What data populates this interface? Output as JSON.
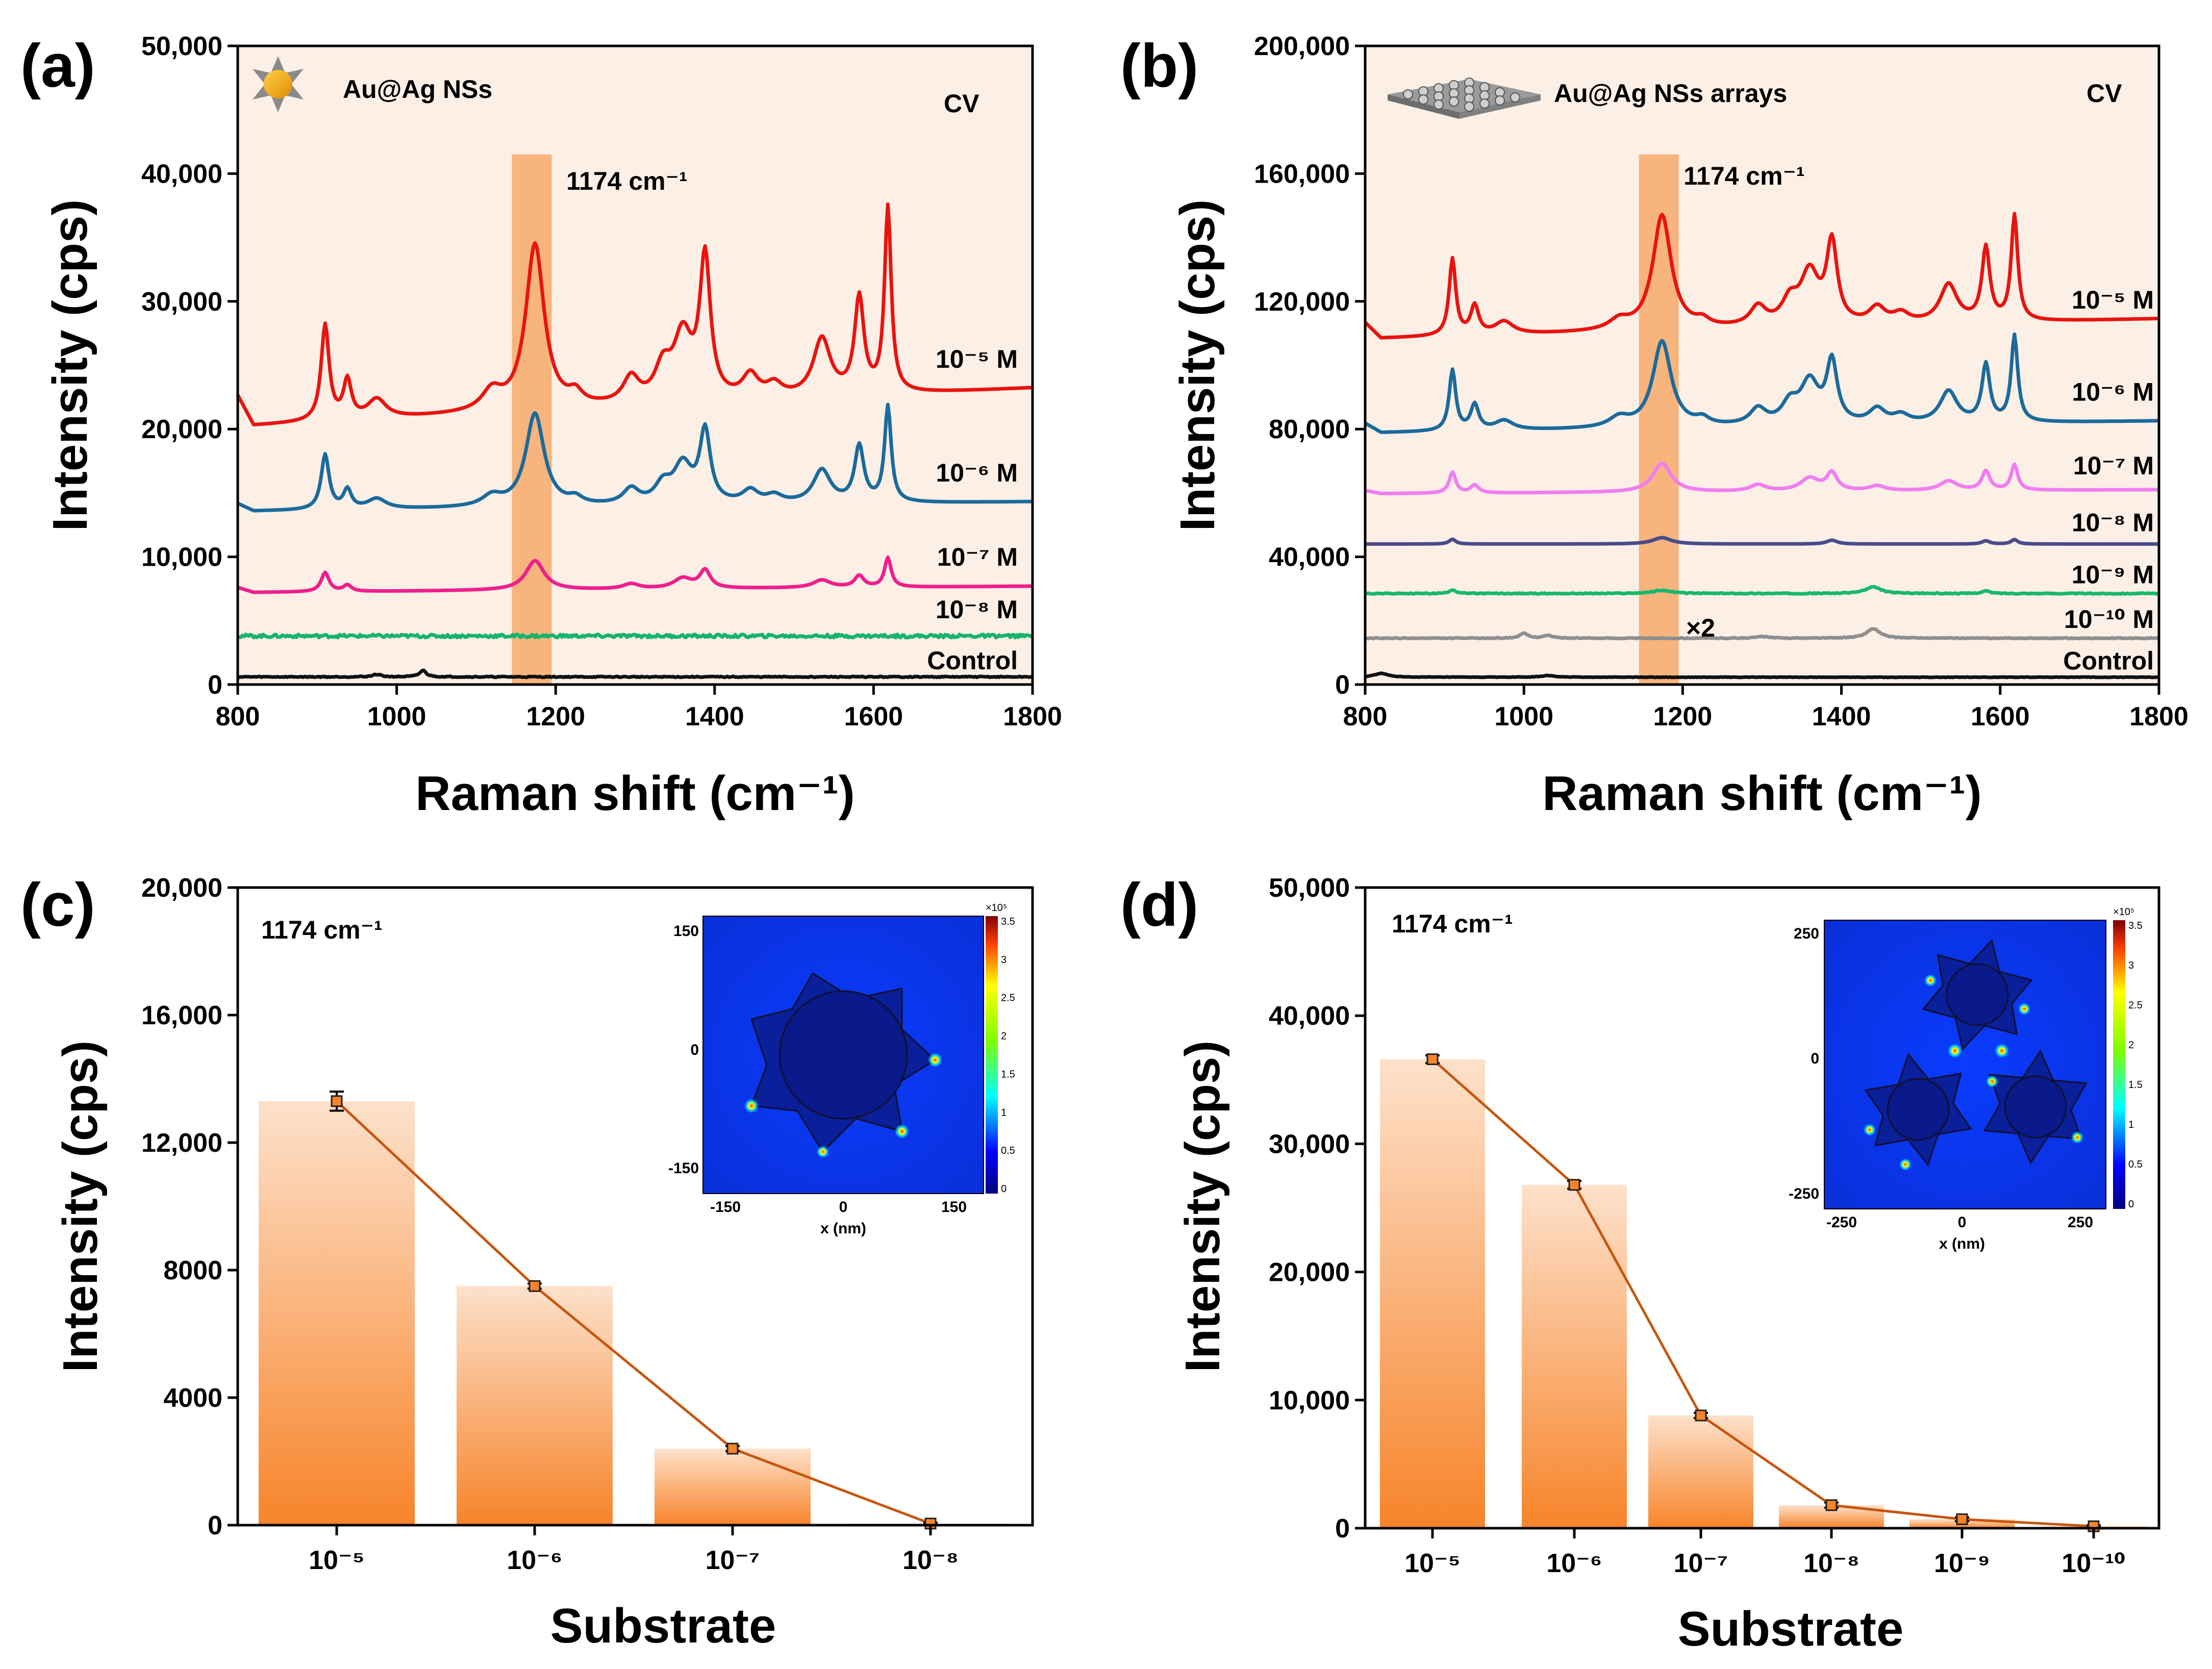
{
  "panels": {
    "a": {
      "letter": "(a)",
      "legend_label": "Au@Ag NSs",
      "cv_label": "CV",
      "peak_label": "1174 cm⁻¹",
      "xlabel": "Raman shift (cm⁻¹)",
      "ylabel": "Intensity (cps)"
    },
    "b": {
      "letter": "(b)",
      "legend_label": "Au@Ag NSs arrays",
      "cv_label": "CV",
      "peak_label": "1174 cm⁻¹",
      "xlabel": "Raman shift (cm⁻¹)",
      "ylabel": "Intensity (cps)",
      "multiplier_label": "×2"
    },
    "c": {
      "letter": "(c)",
      "peak_label": "1174 cm⁻¹",
      "xlabel": "Substrate",
      "ylabel": "Intensity (cps)",
      "inset": {
        "xlabel": "x (nm)",
        "xticks": [
          "-150",
          "0",
          "150"
        ],
        "yticks": [
          "150",
          "0",
          "-150"
        ],
        "colorbar_exp": "×10⁵",
        "colorbar_ticks": [
          "3.5",
          "3",
          "2.5",
          "2",
          "1.5",
          "1",
          "0.5",
          "0"
        ]
      }
    },
    "d": {
      "letter": "(d)",
      "peak_label": "1174 cm⁻¹",
      "xlabel": "Substrate",
      "ylabel": "Intensity (cps)",
      "inset": {
        "xlabel": "x (nm)",
        "xticks": [
          "-250",
          "0",
          "250"
        ],
        "yticks": [
          "250",
          "0",
          "-250"
        ],
        "colorbar_exp": "×10⁵",
        "colorbar_ticks": [
          "3.5",
          "3",
          "2.5",
          "2",
          "1.5",
          "1",
          "0.5",
          "0"
        ]
      }
    }
  },
  "colors": {
    "red": "#e8140f",
    "blue": "#1b6a9c",
    "magenta": "#ee1f8c",
    "green": "#16b46b",
    "black": "#111111",
    "pink": "#f07ef0",
    "navy": "#4a4c8a",
    "green2": "#19b86a",
    "gray": "#8f8f8f",
    "peak_band": "#f6a96a",
    "plot_bg": "#fcefe6",
    "bar_top": "#fde1cb",
    "bar_bottom": "#f7842a",
    "trend_line": "#c6560e"
  },
  "chart_data": [
    {
      "id": "a",
      "type": "line",
      "title": "",
      "xlabel": "Raman shift (cm⁻¹)",
      "ylabel": "Intensity (cps)",
      "xlim": [
        800,
        1800
      ],
      "ylim": [
        0,
        50000
      ],
      "xticks": [
        "800",
        "1000",
        "1200",
        "1400",
        "1600",
        "1800"
      ],
      "yticks": [
        "0",
        "10,000",
        "20,000",
        "30,000",
        "40,000",
        "50,000"
      ],
      "highlight_band": [
        1145,
        1195
      ],
      "series": [
        {
          "name": "10⁻⁵ M",
          "color_key": "red",
          "baseline": 22000,
          "drift": 1200,
          "noise": 0,
          "peaks": [
            [
              910,
              7500,
              6
            ],
            [
              938,
              3000,
              6
            ],
            [
              975,
              1500,
              14
            ],
            [
              1120,
              1500,
              15
            ],
            [
              1174,
              13000,
              14
            ],
            [
              1225,
              900,
              10
            ],
            [
              1295,
              2000,
              12
            ],
            [
              1335,
              2500,
              12
            ],
            [
              1360,
              5000,
              14
            ],
            [
              1388,
              11000,
              8
            ],
            [
              1445,
              1800,
              12
            ],
            [
              1475,
              1000,
              12
            ],
            [
              1535,
              4500,
              13
            ],
            [
              1582,
              7500,
              7
            ],
            [
              1618,
              14500,
              5
            ]
          ]
        },
        {
          "name": "10⁻⁶ M",
          "color_key": "blue",
          "baseline": 14000,
          "drift": 300,
          "noise": 0,
          "peaks": [
            [
              910,
              4300,
              6
            ],
            [
              938,
              1500,
              6
            ],
            [
              975,
              800,
              14
            ],
            [
              1120,
              800,
              15
            ],
            [
              1174,
              7300,
              14
            ],
            [
              1225,
              500,
              10
            ],
            [
              1295,
              1200,
              12
            ],
            [
              1335,
              1400,
              12
            ],
            [
              1360,
              3000,
              14
            ],
            [
              1388,
              5600,
              8
            ],
            [
              1445,
              1000,
              12
            ],
            [
              1475,
              600,
              12
            ],
            [
              1535,
              2600,
              13
            ],
            [
              1582,
              4400,
              7
            ],
            [
              1618,
              7500,
              5
            ]
          ]
        },
        {
          "name": "10⁻⁷ M",
          "color_key": "magenta",
          "baseline": 7500,
          "drift": 200,
          "noise": 0,
          "peaks": [
            [
              910,
              1500,
              6
            ],
            [
              938,
              500,
              6
            ],
            [
              1174,
              2300,
              14
            ],
            [
              1295,
              400,
              12
            ],
            [
              1360,
              800,
              14
            ],
            [
              1388,
              1400,
              8
            ],
            [
              1535,
              600,
              13
            ],
            [
              1582,
              900,
              7
            ],
            [
              1618,
              2300,
              5
            ]
          ]
        },
        {
          "name": "10⁻⁸ M",
          "color_key": "green",
          "baseline": 3800,
          "drift": 0,
          "noise": 250,
          "peaks": []
        },
        {
          "name": "Control",
          "color_key": "black",
          "baseline": 600,
          "drift": 0,
          "noise": 80,
          "peaks": [
            [
              1033,
              500,
              5
            ],
            [
              975,
              200,
              6
            ]
          ]
        }
      ]
    },
    {
      "id": "b",
      "type": "line",
      "title": "",
      "xlabel": "Raman shift (cm⁻¹)",
      "ylabel": "Intensity (cps)",
      "xlim": [
        800,
        1800
      ],
      "ylim": [
        0,
        200000
      ],
      "xticks": [
        "800",
        "1000",
        "1200",
        "1400",
        "1600",
        "1800"
      ],
      "yticks": [
        "0",
        "40,000",
        "80,000",
        "120,000",
        "160,000",
        "200,000"
      ],
      "highlight_band": [
        1145,
        1195
      ],
      "series": [
        {
          "name": "10⁻⁵ M",
          "color_key": "red",
          "baseline": 112000,
          "drift": 2500,
          "noise": 0,
          "peaks": [
            [
              910,
              24000,
              5
            ],
            [
              938,
              9000,
              6
            ],
            [
              975,
              4000,
              14
            ],
            [
              1120,
              3000,
              15
            ],
            [
              1174,
              36000,
              14
            ],
            [
              1225,
              2000,
              10
            ],
            [
              1295,
              6000,
              12
            ],
            [
              1335,
              7000,
              12
            ],
            [
              1360,
              16000,
              14
            ],
            [
              1388,
              25000,
              8
            ],
            [
              1445,
              5000,
              12
            ],
            [
              1475,
              3000,
              12
            ],
            [
              1535,
              12000,
              13
            ],
            [
              1582,
              23000,
              6
            ],
            [
              1618,
              33000,
              5
            ]
          ]
        },
        {
          "name": "10⁻⁶ M",
          "color_key": "blue",
          "baseline": 81000,
          "drift": 1500,
          "noise": 0,
          "peaks": [
            [
              910,
              19000,
              5
            ],
            [
              938,
              8000,
              6
            ],
            [
              975,
              3000,
              14
            ],
            [
              1120,
              3000,
              15
            ],
            [
              1174,
              27000,
              14
            ],
            [
              1225,
              2000,
              10
            ],
            [
              1295,
              5000,
              12
            ],
            [
              1335,
              6000,
              12
            ],
            [
              1360,
              13000,
              14
            ],
            [
              1388,
              19000,
              8
            ],
            [
              1445,
              4500,
              12
            ],
            [
              1475,
              2500,
              12
            ],
            [
              1535,
              10000,
              13
            ],
            [
              1582,
              18000,
              6
            ],
            [
              1618,
              27000,
              5
            ]
          ]
        },
        {
          "name": "10⁻⁷ M",
          "color_key": "pink",
          "baseline": 60500,
          "drift": 500,
          "noise": 0,
          "peaks": [
            [
              910,
              6500,
              5
            ],
            [
              938,
              2500,
              6
            ],
            [
              1174,
              9000,
              14
            ],
            [
              1295,
              2000,
              12
            ],
            [
              1360,
              4000,
              14
            ],
            [
              1388,
              5500,
              8
            ],
            [
              1445,
              1500,
              12
            ],
            [
              1535,
              3000,
              13
            ],
            [
              1582,
              6000,
              6
            ],
            [
              1618,
              8000,
              5
            ]
          ]
        },
        {
          "name": "10⁻⁸ M",
          "color_key": "navy",
          "baseline": 44000,
          "drift": 0,
          "noise": 0,
          "peaks": [
            [
              910,
              1500,
              5
            ],
            [
              1174,
              2000,
              14
            ],
            [
              1388,
              1200,
              8
            ],
            [
              1582,
              1000,
              6
            ],
            [
              1618,
              1400,
              5
            ]
          ]
        },
        {
          "name": "10⁻⁹ M",
          "color_key": "green2",
          "baseline": 28500,
          "drift": 0,
          "noise": 300,
          "peaks": [
            [
              910,
              1200,
              5
            ],
            [
              1174,
              1000,
              14
            ],
            [
              1440,
              2000,
              12
            ],
            [
              1582,
              800,
              6
            ]
          ]
        },
        {
          "name": "10⁻¹⁰ M",
          "color_key": "gray",
          "baseline": 14500,
          "drift": 0,
          "noise": 250,
          "peaks": [
            [
              1000,
              1500,
              6
            ],
            [
              1030,
              800,
              8
            ],
            [
              1300,
              500,
              10
            ],
            [
              1440,
              3000,
              10
            ]
          ]
        },
        {
          "name": "Control",
          "color_key": "black",
          "baseline": 2300,
          "drift": 0,
          "noise": 150,
          "peaks": [
            [
              820,
              1200,
              10
            ],
            [
              1030,
              500,
              10
            ]
          ]
        }
      ]
    },
    {
      "id": "c",
      "type": "bar",
      "title": "",
      "xlabel": "Substrate",
      "ylabel": "Intensity (cps)",
      "categories": [
        "10⁻⁵",
        "10⁻⁶",
        "10⁻⁷",
        "10⁻⁸"
      ],
      "values": [
        13300,
        7500,
        2400,
        50
      ],
      "errors": [
        300,
        80,
        80,
        30
      ],
      "ylim": [
        0,
        20000
      ],
      "yticks": [
        "0",
        "4000",
        "8000",
        "12,000",
        "16,000",
        "20,000"
      ]
    },
    {
      "id": "d",
      "type": "bar",
      "title": "",
      "xlabel": "Substrate",
      "ylabel": "Intensity (cps)",
      "categories": [
        "10⁻⁵",
        "10⁻⁶",
        "10⁻⁷",
        "10⁻⁸",
        "10⁻⁹",
        "10⁻¹⁰"
      ],
      "values": [
        36600,
        26800,
        8800,
        1800,
        700,
        150
      ],
      "errors": [
        300,
        300,
        200,
        200,
        150,
        80
      ],
      "ylim": [
        0,
        50000
      ],
      "yticks": [
        "0",
        "10,000",
        "20,000",
        "30,000",
        "40,000",
        "50,000"
      ]
    }
  ]
}
